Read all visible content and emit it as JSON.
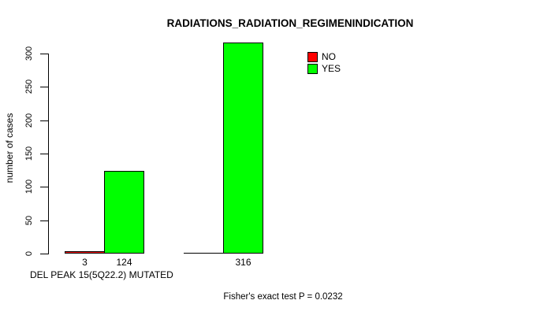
{
  "chart_data": {
    "type": "bar",
    "title": "RADIATIONS_RADIATION_REGIMENINDICATION",
    "ylabel": "number of cases",
    "xlabel": "DEL PEAK 15(5Q22.2) MUTATED",
    "annotation": "Fisher's exact test P = 0.0232",
    "categories": [
      "DEL PEAK 15(5Q22.2) MUTATED",
      ""
    ],
    "series": [
      {
        "name": "NO",
        "color": "#ff0000",
        "values": [
          3,
          0
        ]
      },
      {
        "name": "YES",
        "color": "#00ff00",
        "values": [
          124,
          316
        ]
      }
    ],
    "bar_value_labels": [
      "3",
      "124",
      "316"
    ],
    "yticks": [
      0,
      50,
      100,
      150,
      200,
      250,
      300
    ],
    "ylim": [
      0,
      316
    ],
    "grid": false,
    "legend": {
      "position": "top-right",
      "entries": [
        {
          "label": "NO",
          "color": "#ff0000"
        },
        {
          "label": "YES",
          "color": "#00ff00"
        }
      ]
    },
    "colors": {
      "background": "#ffffff",
      "axis": "#000000",
      "bar_border": "#000000",
      "text": "#000000"
    }
  }
}
